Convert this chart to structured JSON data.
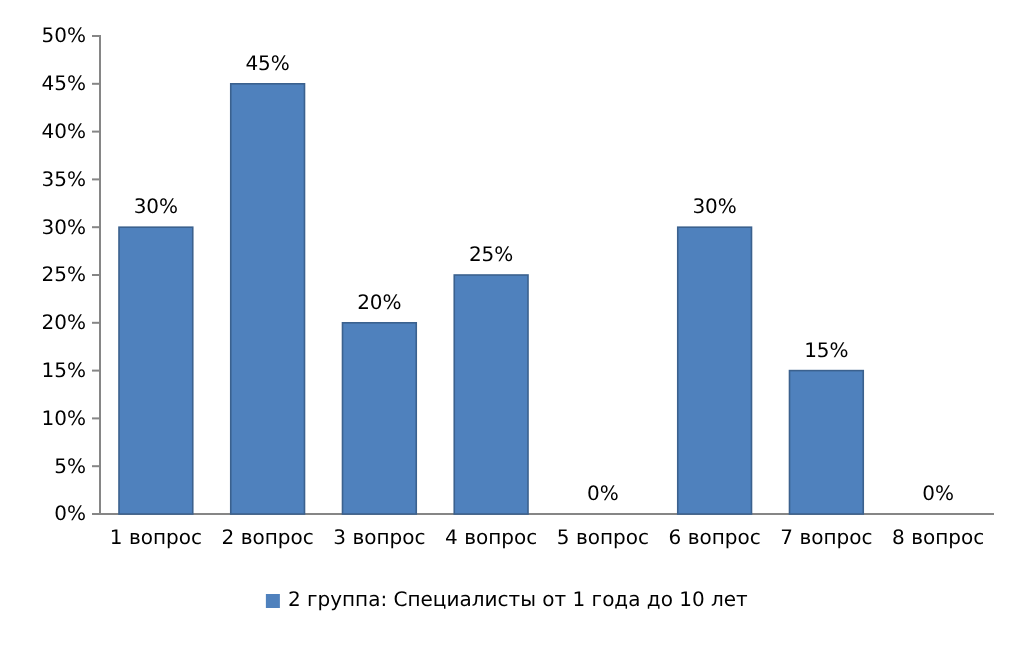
{
  "chart_data": {
    "type": "bar",
    "categories": [
      "1 вопрос",
      "2 вопрос",
      "3 вопрос",
      "4 вопрос",
      "5 вопрос",
      "6 вопрос",
      "7 вопрос",
      "8 вопрос"
    ],
    "series": [
      {
        "name": "2 группа: Специалисты от 1 года до 10 лет",
        "color": "#4f81bd",
        "values": [
          30,
          45,
          20,
          25,
          0,
          30,
          15,
          0
        ],
        "value_labels": [
          "30%",
          "45%",
          "20%",
          "25%",
          "0%",
          "30%",
          "15%",
          "0%"
        ]
      }
    ],
    "ylim": [
      0,
      50
    ],
    "yticks": [
      {
        "value": 0,
        "label": "0%"
      },
      {
        "value": 5,
        "label": "5%"
      },
      {
        "value": 10,
        "label": "10%"
      },
      {
        "value": 15,
        "label": "15%"
      },
      {
        "value": 20,
        "label": "20%"
      },
      {
        "value": 25,
        "label": "25%"
      },
      {
        "value": 30,
        "label": "30%"
      },
      {
        "value": 35,
        "label": "35%"
      },
      {
        "value": 40,
        "label": "40%"
      },
      {
        "value": 45,
        "label": "45%"
      },
      {
        "value": 50,
        "label": "50%"
      }
    ],
    "grid": false,
    "legend": "bottom"
  }
}
